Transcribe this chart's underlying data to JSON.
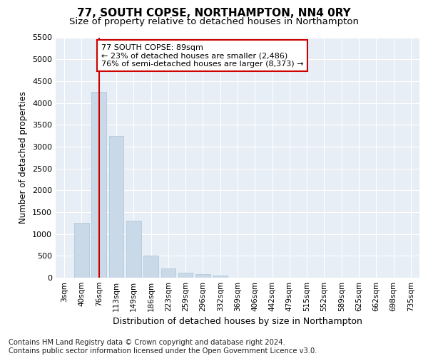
{
  "title": "77, SOUTH COPSE, NORTHAMPTON, NN4 0RY",
  "subtitle": "Size of property relative to detached houses in Northampton",
  "xlabel": "Distribution of detached houses by size in Northampton",
  "ylabel": "Number of detached properties",
  "categories": [
    "3sqm",
    "40sqm",
    "76sqm",
    "113sqm",
    "149sqm",
    "186sqm",
    "223sqm",
    "259sqm",
    "296sqm",
    "332sqm",
    "369sqm",
    "406sqm",
    "442sqm",
    "479sqm",
    "515sqm",
    "552sqm",
    "589sqm",
    "625sqm",
    "662sqm",
    "698sqm",
    "735sqm"
  ],
  "values": [
    0,
    1250,
    4250,
    3250,
    1300,
    500,
    220,
    110,
    80,
    50,
    0,
    0,
    0,
    0,
    0,
    0,
    0,
    0,
    0,
    0,
    0
  ],
  "bar_color": "#c9d9e8",
  "bar_edge_color": "#a8c4d8",
  "vline_x_index": 2,
  "vline_color": "#cc0000",
  "annotation_line1": "77 SOUTH COPSE: 89sqm",
  "annotation_line2": "← 23% of detached houses are smaller (2,486)",
  "annotation_line3": "76% of semi-detached houses are larger (8,373) →",
  "annotation_box_color": "#ffffff",
  "annotation_box_edgecolor": "#cc0000",
  "ylim": [
    0,
    5500
  ],
  "yticks": [
    0,
    500,
    1000,
    1500,
    2000,
    2500,
    3000,
    3500,
    4000,
    4500,
    5000,
    5500
  ],
  "plot_bg_color": "#e8eef5",
  "grid_color": "#ffffff",
  "footer_line1": "Contains HM Land Registry data © Crown copyright and database right 2024.",
  "footer_line2": "Contains public sector information licensed under the Open Government Licence v3.0.",
  "title_fontsize": 11,
  "subtitle_fontsize": 9.5,
  "xlabel_fontsize": 9,
  "ylabel_fontsize": 8.5,
  "tick_fontsize": 8,
  "xtick_fontsize": 7.5,
  "annotation_fontsize": 8,
  "footer_fontsize": 7.2
}
